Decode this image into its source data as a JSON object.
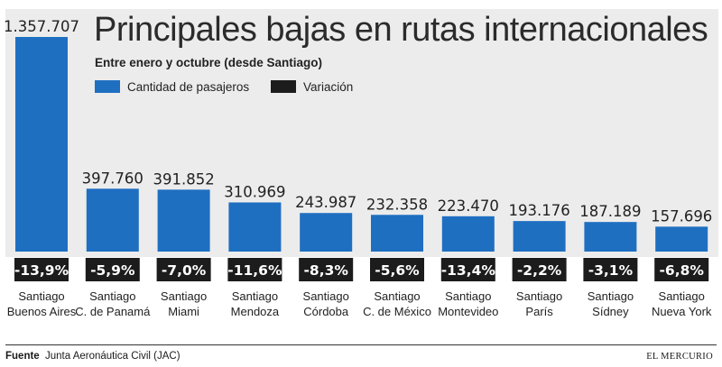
{
  "chart_data": {
    "type": "bar",
    "title": "Principales bajas en rutas internacionales",
    "subtitle": "Entre enero y octubre (desde Santiago)",
    "legend": [
      {
        "label": "Cantidad de pasajeros",
        "color": "#1f6fc1"
      },
      {
        "label": "Variación",
        "color": "#1c1c1c"
      }
    ],
    "categories": [
      [
        "Santiago",
        "Buenos Aires"
      ],
      [
        "Santiago",
        "C. de Panamá"
      ],
      [
        "Santiago",
        "Miami"
      ],
      [
        "Santiago",
        "Mendoza"
      ],
      [
        "Santiago",
        "Córdoba"
      ],
      [
        "Santiago",
        "C. de México"
      ],
      [
        "Santiago",
        "Montevideo"
      ],
      [
        "Santiago",
        "París"
      ],
      [
        "Santiago",
        "Sídney"
      ],
      [
        "Santiago",
        "Nueva York"
      ]
    ],
    "values": [
      1357707,
      397760,
      391852,
      310969,
      243987,
      232358,
      223470,
      193176,
      187189,
      157696
    ],
    "value_labels": [
      "1.357.707",
      "397.760",
      "391.852",
      "310.969",
      "243.987",
      "232.358",
      "223.470",
      "193.176",
      "187.189",
      "157.696"
    ],
    "variation": [
      "-13,9%",
      "-5,9%",
      "-7,0%",
      "-11,6%",
      "-8,3%",
      "-5,6%",
      "-13,4%",
      "-2,2%",
      "-3,1%",
      "-6,8%"
    ],
    "ylim": [
      0,
      1357707
    ]
  },
  "footer": {
    "source_label": "Fuente",
    "source": "Junta Aeronáutica Civil (JAC)",
    "brand": "EL MERCURIO"
  },
  "colors": {
    "bar": "#1f6fc1",
    "variation_box": "#1c1c1c",
    "plot_bg": "#ececec"
  }
}
